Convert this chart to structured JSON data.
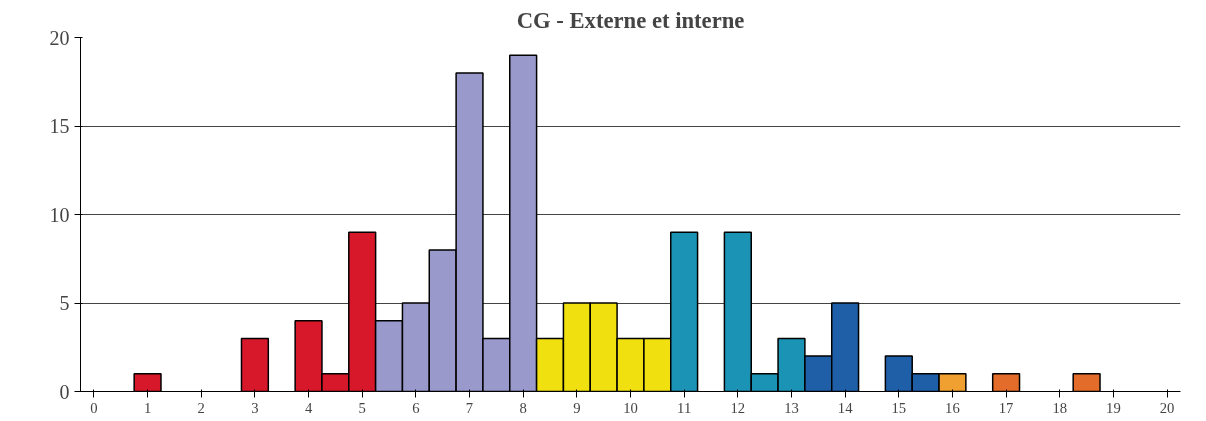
{
  "chart_data": {
    "type": "bar",
    "title": "CG - Externe et interne",
    "x": [
      1,
      3,
      4,
      4.5,
      5,
      5.5,
      6,
      6.5,
      7,
      7.5,
      8,
      8.5,
      9,
      9.5,
      10,
      10.5,
      11,
      12,
      12.5,
      13,
      13.5,
      14,
      15,
      15.5,
      16,
      17,
      18.5
    ],
    "values": [
      1,
      3,
      4,
      1,
      9,
      4,
      5,
      8,
      18,
      3,
      19,
      3,
      5,
      5,
      3,
      3,
      9,
      9,
      1,
      3,
      2,
      5,
      2,
      1,
      1,
      1,
      1
    ],
    "colors": [
      "#d7182a",
      "#d7182a",
      "#d7182a",
      "#d7182a",
      "#d7182a",
      "#9999cc",
      "#9999cc",
      "#9999cc",
      "#9999cc",
      "#9999cc",
      "#9999cc",
      "#f0e010",
      "#f0e010",
      "#f0e010",
      "#f0e010",
      "#f0e010",
      "#1a93b5",
      "#1a93b5",
      "#1a93b5",
      "#1a93b5",
      "#1f5fa8",
      "#1f5fa8",
      "#1f5fa8",
      "#1f5fa8",
      "#f0a030",
      "#e36c2a",
      "#e36c2a"
    ],
    "xlim": [
      -0.25,
      20.25
    ],
    "xticks": [
      0,
      1,
      2,
      3,
      4,
      5,
      6,
      7,
      8,
      9,
      10,
      11,
      12,
      13,
      14,
      15,
      16,
      17,
      18,
      19,
      20
    ],
    "ylim": [
      0,
      20
    ],
    "yticks": [
      0,
      5,
      10,
      15,
      20
    ],
    "grid": "y"
  }
}
